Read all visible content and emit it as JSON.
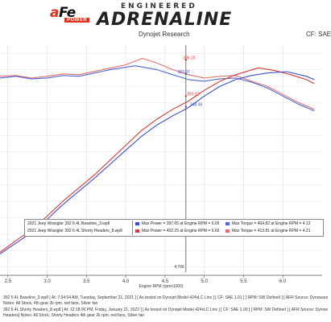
{
  "header": {
    "logo_text": "aFe",
    "logo_sub": "POWER",
    "brand_top": "ENGINEERED",
    "brand_main": "ADRENALINE",
    "subtitle": "Dynojet Research",
    "cf": "CF: SAE"
  },
  "legend": {
    "rows": [
      {
        "file": "2021 Jeep Wrangler 392 6.4L Baseline_3.wp8",
        "power": "Max Power = 397.65 at Engine RPM = 6.05",
        "torque": "Max Torque = 404.82 at Engine RPM = 4.12",
        "power_color": "#3b4fc4",
        "torque_color": "#5565cf"
      },
      {
        "file": "2021 Jeep Wrangler 392 6.4L Shorty Headers_8.wp8",
        "power": "Max Power = 402.25 at Engine RPM = 5.69",
        "torque": "Max Torque = 413.81 at Engine RPM = 4.21",
        "power_color": "#d53a3a",
        "torque_color": "#e07070"
      }
    ]
  },
  "footer": {
    "line1": "392 6.4L Baseline_3.wp8 [ At: 7:34:04 AM, Tuesday, September 21, 2021 ] [ As tested on Dynojet Model 424xLC Linx ] [ CF: SAE 1.01 ] [ RPM: SW Defined ] [ AFR Source: Dynoware",
    "line2": "Notes: All Stock, 4th gear 2k rpm. red fans, Silver fan",
    "line3": "392 6.4L Shorty Headers_8.wp8 [ At: 12:18:00 PM, Friday, January 21, 2022 ] [ As tested on Dynojet Model 424xLC Linx ] [ CF: SAE 1.00 ] [ RPM: SW Defined ] [ AFR Source: Dynow",
    "line4": "Headers] Notes: All Stock, Shorty Headers 4th gear 2k rpm. red fans, Silver fan"
  },
  "chart_data": {
    "type": "line",
    "xlabel": "Engine RPM (rpmx1000)",
    "x_ticks": [
      "2.5",
      "3.0",
      "3.5",
      "4.0",
      "4.5",
      "5.0",
      "5.5",
      "6.0"
    ],
    "xlim": [
      2.4,
      6.5
    ],
    "ylim": [
      150,
      430
    ],
    "grid": true,
    "cursor": {
      "x": 4.766,
      "label": "4.766"
    },
    "point_labels": [
      {
        "text": "396.15",
        "x": 4.73,
        "y": 412,
        "color": "#d53a3a"
      },
      {
        "text": "383.97",
        "x": 4.66,
        "y": 395,
        "color": "#3b4fc4"
      },
      {
        "text": "359.52",
        "x": 4.78,
        "y": 368,
        "color": "#d53a3a"
      },
      {
        "text": "348.46",
        "x": 4.82,
        "y": 355,
        "color": "#3b4fc4"
      }
    ],
    "series": [
      {
        "name": "Torque - 2021 Jeep Wrangler 392 6.4L Shorty Headers_8.wp8",
        "color": "#e07070",
        "x": [
          2.4,
          2.6,
          2.8,
          3.0,
          3.2,
          3.4,
          3.6,
          3.8,
          4.0,
          4.21,
          4.4,
          4.6,
          4.8,
          5.0,
          5.2,
          5.4,
          5.6,
          5.8,
          6.0,
          6.2,
          6.4
        ],
        "y": [
          392,
          393,
          390,
          392,
          395,
          394,
          398,
          402,
          406,
          413.81,
          408,
          400,
          394,
          390,
          392,
          393,
          386,
          380,
          370,
          360,
          352
        ]
      },
      {
        "name": "Torque - 2021 Jeep Wrangler 392 6.4L Baseline_3.wp8",
        "color": "#5565cf",
        "x": [
          2.4,
          2.6,
          2.8,
          3.0,
          3.2,
          3.4,
          3.6,
          3.8,
          4.0,
          4.12,
          4.4,
          4.6,
          4.8,
          5.0,
          5.2,
          5.4,
          5.6,
          5.8,
          6.0,
          6.2,
          6.4
        ],
        "y": [
          390,
          392,
          389,
          390,
          393,
          392,
          396,
          400,
          403,
          404.82,
          400,
          394,
          388,
          386,
          389,
          390,
          385,
          378,
          368,
          358,
          350
        ]
      },
      {
        "name": "Power - 2021 Jeep Wrangler 392 6.4L Shorty Headers_8.wp8",
        "color": "#d53a3a",
        "x": [
          2.4,
          2.6,
          2.8,
          3.0,
          3.2,
          3.4,
          3.6,
          3.8,
          4.0,
          4.2,
          4.4,
          4.6,
          4.8,
          5.0,
          5.2,
          5.4,
          5.69,
          5.9,
          6.1,
          6.3,
          6.4
        ],
        "y": [
          178,
          192,
          205,
          222,
          240,
          256,
          272,
          290,
          308,
          326,
          340,
          352,
          362,
          375,
          386,
          394,
          402.25,
          399,
          394,
          388,
          383
        ]
      },
      {
        "name": "Power - 2021 Jeep Wrangler 392 6.4L Baseline_3.wp8",
        "color": "#3b4fc4",
        "x": [
          2.4,
          2.6,
          2.8,
          3.0,
          3.2,
          3.4,
          3.6,
          3.8,
          4.0,
          4.2,
          4.4,
          4.6,
          4.8,
          5.0,
          5.2,
          5.4,
          5.6,
          5.8,
          6.05,
          6.3,
          6.4
        ],
        "y": [
          176,
          189,
          202,
          218,
          236,
          252,
          268,
          285,
          302,
          319,
          333,
          344,
          354,
          368,
          380,
          388,
          393,
          396,
          397.65,
          392,
          388
        ]
      }
    ]
  }
}
